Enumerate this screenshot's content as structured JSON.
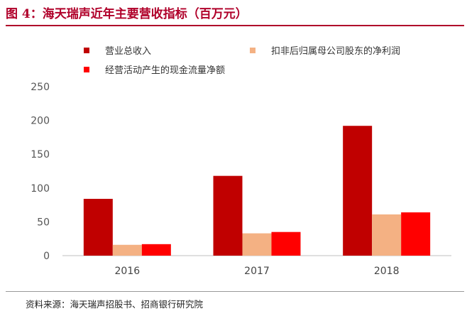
{
  "figure": {
    "title": "图 4：海天瑞声近年主要营收指标（百万元）",
    "source": "资料来源：海天瑞声招股书、招商银行研究院"
  },
  "chart_data": {
    "type": "bar",
    "title": "图 4：海天瑞声近年主要营收指标（百万元）",
    "xlabel": "",
    "ylabel": "",
    "categories": [
      "2016",
      "2017",
      "2018"
    ],
    "ylim": [
      0,
      250
    ],
    "yticks": [
      0,
      50,
      100,
      150,
      200,
      250
    ],
    "grid": false,
    "legend_position": "top",
    "series": [
      {
        "name": "营业总收入",
        "color": "#c00000",
        "values": [
          84,
          118,
          192
        ]
      },
      {
        "name": "扣非后归属母公司股东的净利润",
        "color": "#f4b183",
        "values": [
          16,
          33,
          61
        ]
      },
      {
        "name": "经营活动产生的现金流量净额",
        "color": "#ff0000",
        "values": [
          17,
          35,
          64
        ]
      }
    ]
  }
}
